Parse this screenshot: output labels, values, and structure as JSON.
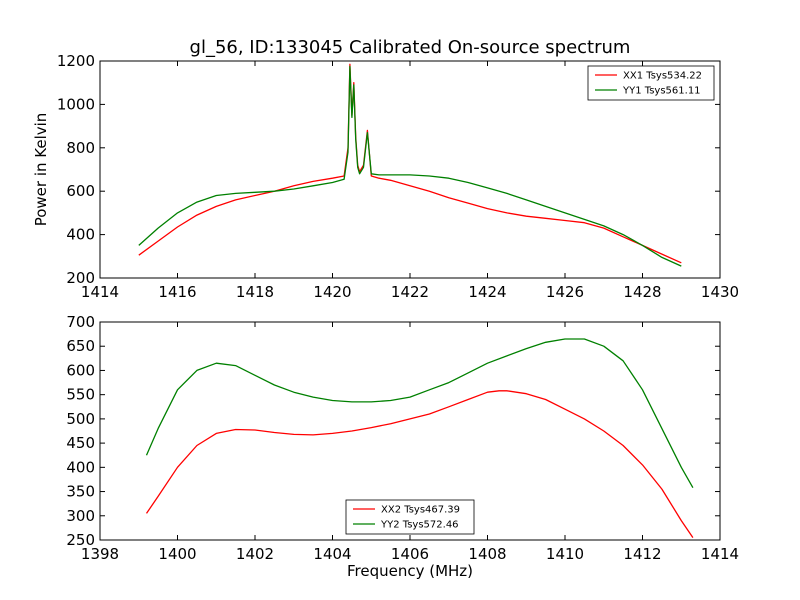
{
  "figure": {
    "title": "gl_56, ID:133045 Calibrated On-source spectrum"
  },
  "chart_data": [
    {
      "type": "line",
      "title": "gl_56, ID:133045 Calibrated On-source spectrum",
      "xlabel": "",
      "ylabel": "Power in Kelvin",
      "xlim": [
        1414,
        1430
      ],
      "ylim": [
        200,
        1200
      ],
      "xticks": [
        1414,
        1416,
        1418,
        1420,
        1422,
        1424,
        1426,
        1428,
        1430
      ],
      "yticks": [
        200,
        400,
        600,
        800,
        1000,
        1200
      ],
      "grid": false,
      "legend_position": "top-right",
      "series": [
        {
          "name": "XX1 Tsys534.22",
          "color": "#ff0000",
          "x": [
            1415.0,
            1415.5,
            1416.0,
            1416.5,
            1417.0,
            1417.5,
            1418.0,
            1418.5,
            1419.0,
            1419.5,
            1420.0,
            1420.3,
            1420.4,
            1420.45,
            1420.5,
            1420.55,
            1420.6,
            1420.65,
            1420.7,
            1420.8,
            1420.9,
            1421.0,
            1421.2,
            1421.5,
            1422.0,
            1422.5,
            1423.0,
            1423.5,
            1424.0,
            1424.5,
            1425.0,
            1425.5,
            1426.0,
            1426.5,
            1427.0,
            1427.5,
            1428.0,
            1428.5,
            1429.0
          ],
          "y": [
            305,
            370,
            435,
            490,
            530,
            560,
            580,
            600,
            625,
            645,
            660,
            670,
            800,
            1185,
            950,
            1100,
            850,
            720,
            690,
            720,
            880,
            670,
            660,
            650,
            625,
            600,
            570,
            545,
            520,
            500,
            485,
            475,
            465,
            455,
            430,
            390,
            350,
            310,
            270
          ]
        },
        {
          "name": "YY1 Tsys561.11",
          "color": "#008000",
          "x": [
            1415.0,
            1415.5,
            1416.0,
            1416.5,
            1417.0,
            1417.5,
            1418.0,
            1418.5,
            1419.0,
            1419.5,
            1420.0,
            1420.3,
            1420.4,
            1420.45,
            1420.5,
            1420.55,
            1420.6,
            1420.65,
            1420.7,
            1420.8,
            1420.9,
            1421.0,
            1421.2,
            1421.5,
            1422.0,
            1422.5,
            1423.0,
            1423.5,
            1424.0,
            1424.5,
            1425.0,
            1425.5,
            1426.0,
            1426.5,
            1427.0,
            1427.5,
            1428.0,
            1428.5,
            1429.0
          ],
          "y": [
            350,
            430,
            500,
            550,
            580,
            590,
            595,
            600,
            610,
            625,
            640,
            655,
            780,
            1175,
            940,
            1090,
            840,
            710,
            680,
            710,
            870,
            680,
            675,
            675,
            675,
            670,
            660,
            640,
            615,
            590,
            560,
            530,
            500,
            470,
            440,
            400,
            350,
            295,
            255
          ]
        }
      ]
    },
    {
      "type": "line",
      "title": "",
      "xlabel": "Frequency (MHz)",
      "ylabel": "",
      "xlim": [
        1398,
        1414
      ],
      "ylim": [
        250,
        700
      ],
      "xticks": [
        1398,
        1400,
        1402,
        1404,
        1406,
        1408,
        1410,
        1412,
        1414
      ],
      "yticks": [
        250,
        300,
        350,
        400,
        450,
        500,
        550,
        600,
        650,
        700
      ],
      "grid": false,
      "legend_position": "bottom-center",
      "series": [
        {
          "name": "XX2 Tsys467.39",
          "color": "#ff0000",
          "x": [
            1399.2,
            1399.5,
            1400.0,
            1400.5,
            1401.0,
            1401.5,
            1402.0,
            1402.5,
            1403.0,
            1403.5,
            1404.0,
            1404.5,
            1405.0,
            1405.5,
            1406.0,
            1406.5,
            1407.0,
            1407.5,
            1408.0,
            1408.3,
            1408.5,
            1409.0,
            1409.5,
            1410.0,
            1410.5,
            1411.0,
            1411.5,
            1412.0,
            1412.5,
            1413.0,
            1413.3
          ],
          "y": [
            305,
            340,
            400,
            445,
            470,
            478,
            477,
            472,
            468,
            467,
            470,
            475,
            482,
            490,
            500,
            510,
            525,
            540,
            555,
            558,
            558,
            552,
            540,
            520,
            500,
            475,
            445,
            405,
            355,
            290,
            255
          ]
        },
        {
          "name": "YY2 Tsys572.46",
          "color": "#008000",
          "x": [
            1399.2,
            1399.5,
            1400.0,
            1400.5,
            1401.0,
            1401.5,
            1402.0,
            1402.5,
            1403.0,
            1403.5,
            1404.0,
            1404.5,
            1405.0,
            1405.5,
            1406.0,
            1406.5,
            1407.0,
            1407.5,
            1408.0,
            1408.5,
            1409.0,
            1409.5,
            1410.0,
            1410.5,
            1411.0,
            1411.5,
            1412.0,
            1412.5,
            1413.0,
            1413.3
          ],
          "y": [
            425,
            480,
            560,
            600,
            615,
            610,
            590,
            570,
            555,
            545,
            538,
            535,
            535,
            538,
            545,
            560,
            575,
            595,
            615,
            630,
            645,
            658,
            665,
            665,
            650,
            620,
            560,
            480,
            400,
            358
          ]
        }
      ]
    }
  ]
}
